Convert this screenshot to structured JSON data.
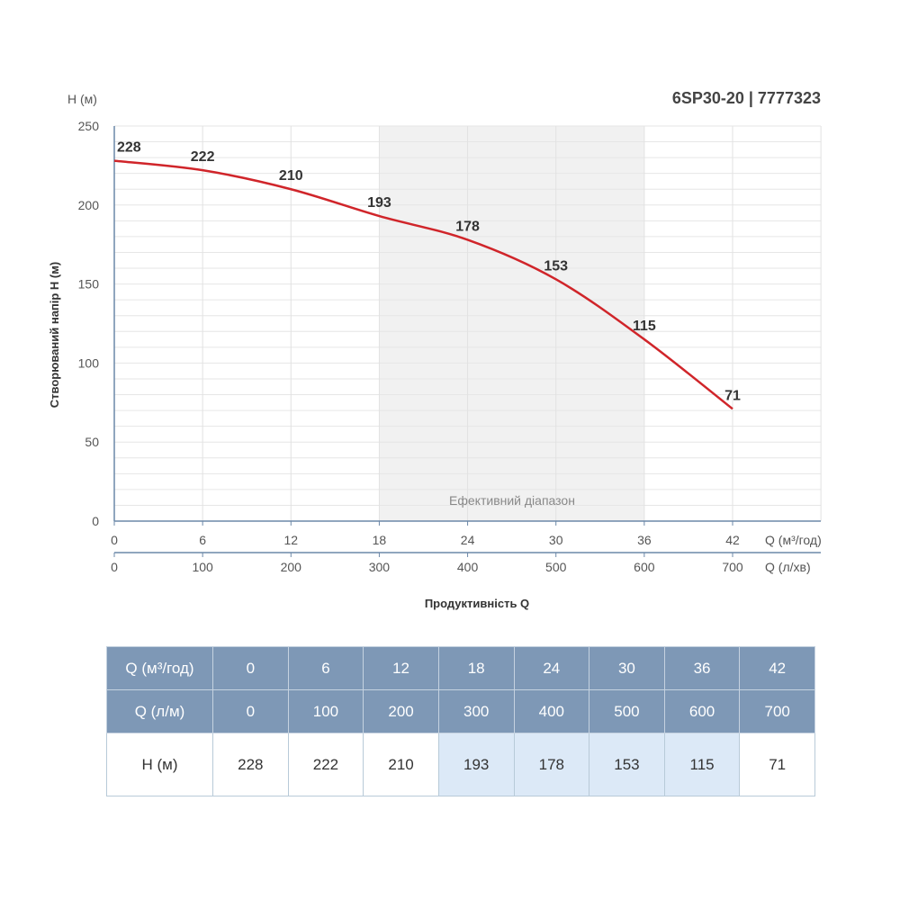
{
  "chart_data": {
    "type": "line",
    "title": "6SP30-20 | 7777323",
    "ylabel": "Створюваний напір H (м)",
    "y_unit_label": "H (м)",
    "xlabel": "Продуктивність Q",
    "x_unit_label": "Q (м³/год)",
    "x2_unit_label": "Q (л/хв)",
    "ylim": [
      0,
      250
    ],
    "yticks": [
      0,
      50,
      100,
      150,
      200,
      250
    ],
    "xlim": [
      0,
      42
    ],
    "xticks": [
      0,
      6,
      12,
      18,
      24,
      30,
      36,
      42
    ],
    "x2ticks": [
      0,
      100,
      200,
      300,
      400,
      500,
      600,
      700
    ],
    "efficient_range": {
      "label": "Ефективний діапазон",
      "from": 18,
      "to": 36
    },
    "series": [
      {
        "x": [
          0,
          6,
          12,
          18,
          24,
          30,
          36,
          42
        ],
        "values": [
          228,
          222,
          210,
          193,
          178,
          153,
          115,
          71
        ],
        "color": "#d0252a"
      }
    ],
    "grid": true
  },
  "table": {
    "rows": [
      {
        "label": "Q (м³/год)",
        "values": [
          "0",
          "6",
          "12",
          "18",
          "24",
          "30",
          "36",
          "42"
        ]
      },
      {
        "label": "Q (л/м)",
        "values": [
          "0",
          "100",
          "200",
          "300",
          "400",
          "500",
          "600",
          "700"
        ]
      },
      {
        "label": "H (м)",
        "values": [
          "228",
          "222",
          "210",
          "193",
          "178",
          "153",
          "115",
          "71"
        ]
      }
    ],
    "highlight_columns": [
      3,
      4,
      5,
      6
    ],
    "header_color": "#7e98b6",
    "highlight_color": "#dce9f7"
  }
}
